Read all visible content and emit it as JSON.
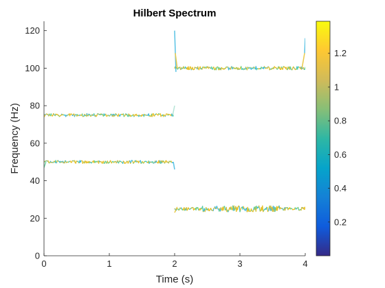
{
  "chart_data": {
    "type": "line",
    "title": "Hilbert Spectrum",
    "xlabel": "Time (s)",
    "ylabel": "Frequency (Hz)",
    "xlim": [
      0,
      4
    ],
    "ylim": [
      0,
      125
    ],
    "xticks": [
      0,
      1,
      2,
      3,
      4
    ],
    "xtick_labels": [
      "0",
      "1",
      "2",
      "3",
      "4"
    ],
    "yticks": [
      0,
      20,
      40,
      60,
      80,
      100,
      120
    ],
    "ytick_labels": [
      "0",
      "20",
      "40",
      "60",
      "80",
      "100",
      "120"
    ],
    "grid": false,
    "colormap": "parula",
    "colorbar": {
      "range": [
        0,
        1.39
      ],
      "ticks": [
        0.2,
        0.4,
        0.6,
        0.8,
        1,
        1.2
      ],
      "tick_labels": [
        "0.2",
        "0.4",
        "0.6",
        "0.8",
        "1",
        "1.2"
      ]
    },
    "series": [
      {
        "x": [
          0,
          1.98
        ],
        "frequency": 75,
        "amplitude": 1.0,
        "color": "#e6c02a"
      },
      {
        "x": [
          0,
          1.98
        ],
        "frequency": 50,
        "amplitude": 1.0,
        "color": "#e6c02a"
      },
      {
        "x": [
          2,
          4
        ],
        "frequency": 100,
        "amplitude": 1.0,
        "color": "#e6c02a"
      },
      {
        "x": [
          2,
          4
        ],
        "frequency": 25,
        "amplitude": 1.0,
        "color": "#e6c02a"
      }
    ],
    "colors": {
      "parula": [
        "#352a87",
        "#0f5cdd",
        "#1481d6",
        "#06a4ca",
        "#2eb7a4",
        "#87bf77",
        "#d1bb59",
        "#fec832",
        "#f9fb0e"
      ],
      "axis": "#262626",
      "line_primary": "#e6c02a",
      "line_secondary": "#5ed19a",
      "line_tertiary": "#3cb8e0"
    }
  }
}
